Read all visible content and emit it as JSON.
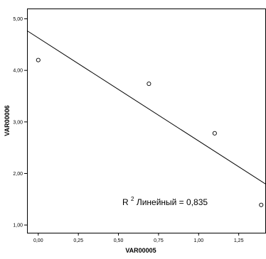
{
  "chart_data": {
    "type": "scatter",
    "xlabel": "VAR00005",
    "ylabel": "VAR00006",
    "xlim": [
      -0.07,
      1.42
    ],
    "ylim": [
      0.85,
      5.2
    ],
    "x_ticks": [
      0.0,
      0.25,
      0.5,
      0.75,
      1.0,
      1.25
    ],
    "x_tick_labels": [
      "0,00",
      "0,25",
      "0,50",
      "0,75",
      "1,00",
      "1,25"
    ],
    "y_ticks": [
      1.0,
      2.0,
      3.0,
      4.0,
      5.0
    ],
    "y_tick_labels": [
      "1,00",
      "2,00",
      "3,00",
      "4,00",
      "5,00"
    ],
    "points": [
      {
        "x": 0.0,
        "y": 4.2
      },
      {
        "x": 0.69,
        "y": 3.74
      },
      {
        "x": 1.1,
        "y": 2.78
      },
      {
        "x": 1.39,
        "y": 1.39
      }
    ],
    "fit_line": {
      "type": "linear",
      "intercept": 4.63,
      "slope": -2.0
    },
    "annotation": {
      "prefix": "R",
      "superscript": "2",
      "text": " Линейный = 0,835"
    },
    "grid": false,
    "legend": "none"
  }
}
